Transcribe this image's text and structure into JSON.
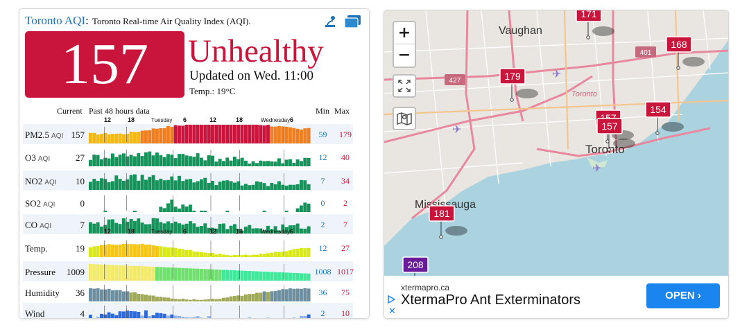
{
  "header": {
    "city": "Toronto AQI",
    "sep": ":",
    "description": "Toronto Real-time Air Quality Index (AQI)."
  },
  "aqi": {
    "value": "157",
    "level": "Unhealthy",
    "updated": "Updated on Wed. 11:00",
    "temperature": "Temp.: 19°C",
    "color": "#c9153b"
  },
  "history": {
    "current_label": "Current",
    "range_label": "Past 48 hours data",
    "min_label": "Min",
    "max_label": "Max",
    "axis_ticks": [
      "12",
      "18",
      "Tuesday",
      "6",
      "12",
      "18",
      "Wednesday",
      "6"
    ],
    "aqi_tag": "AQI",
    "rows": [
      {
        "name": "PM2.5",
        "tag": "AQI",
        "current": "157",
        "min": "59",
        "max": "179",
        "kind": "pm25"
      },
      {
        "name": "O3",
        "tag": "AQI",
        "current": "27",
        "min": "12",
        "max": "40",
        "kind": "green"
      },
      {
        "name": "NO2",
        "tag": "AQI",
        "current": "10",
        "min": "7",
        "max": "34",
        "kind": "green"
      },
      {
        "name": "SO2",
        "tag": "AQI",
        "current": "0",
        "min": "0",
        "max": "2",
        "kind": "green"
      },
      {
        "name": "CO",
        "tag": "AQI",
        "current": "7",
        "min": "2",
        "max": "7",
        "kind": "green"
      },
      {
        "name": "Temp.",
        "tag": "",
        "current": "19",
        "min": "12",
        "max": "27",
        "kind": "temp"
      },
      {
        "name": "Pressure",
        "tag": "",
        "current": "1009",
        "min": "1008",
        "max": "1017",
        "kind": "pressure"
      },
      {
        "name": "Humidity",
        "tag": "",
        "current": "36",
        "min": "36",
        "max": "75",
        "kind": "humidity"
      },
      {
        "name": "Wind",
        "tag": "",
        "current": "4",
        "min": "2",
        "max": "10",
        "kind": "wind"
      }
    ]
  },
  "map": {
    "labels": {
      "vaughan": "Vaughan",
      "toronto": "Toronto",
      "toronto_small": "Toronto",
      "mississauga": "Mississauga",
      "hwy401": "401",
      "hwy427": "427"
    },
    "markers": [
      "171",
      "168",
      "179",
      "157",
      "157",
      "154",
      "181",
      "208"
    ],
    "zoom_in": "+",
    "zoom_out": "−"
  },
  "ad": {
    "domain": "xtermapro.ca",
    "title": "XtermaPro Ant Exterminators",
    "button": "OPEN",
    "close": "✕"
  },
  "colors": {
    "link": "#1f74b8",
    "unhealthy": "#c9153b",
    "good": "#17925a",
    "ad_button": "#1a84ef",
    "water": "#aad3df"
  }
}
